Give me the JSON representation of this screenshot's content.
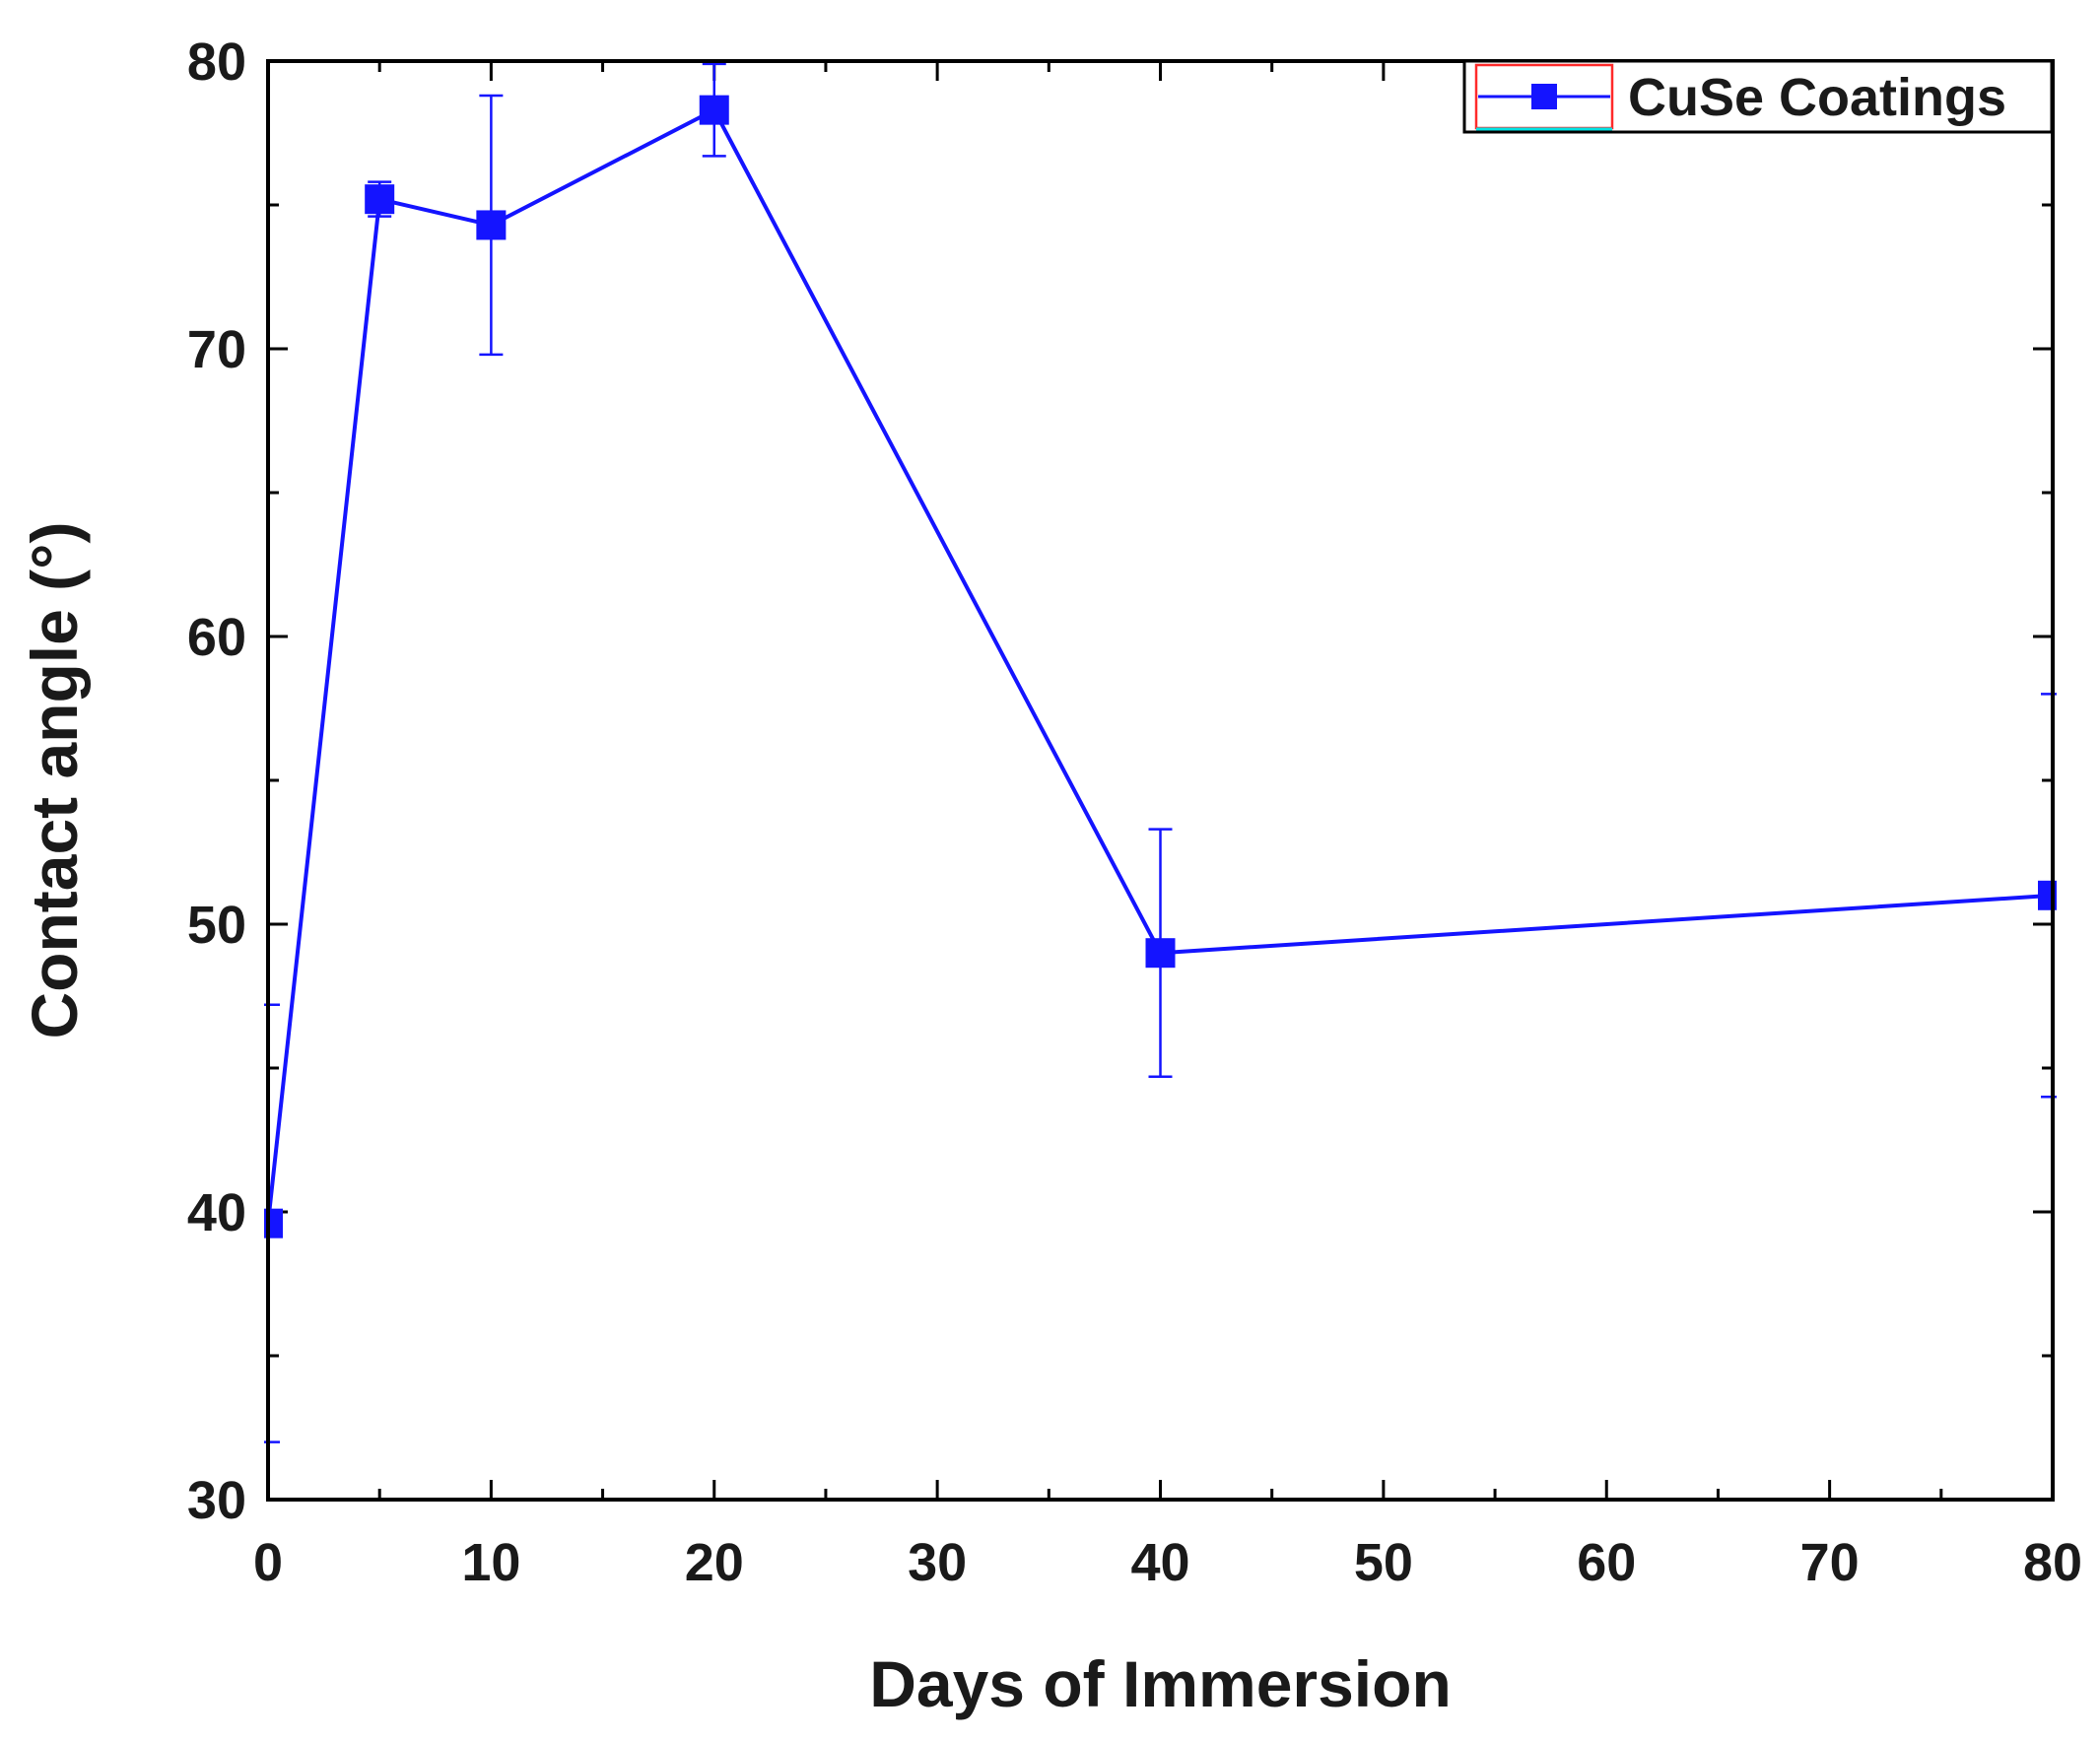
{
  "chart_data": {
    "type": "line",
    "title": "",
    "xlabel": "Days of Immersion",
    "ylabel": "Contact angle (°)",
    "xlim": [
      0,
      80
    ],
    "ylim": [
      30,
      80
    ],
    "x_ticks": [
      0,
      10,
      20,
      30,
      40,
      50,
      60,
      70,
      80
    ],
    "y_ticks": [
      30,
      40,
      50,
      60,
      70,
      80
    ],
    "x_minor_step": 5,
    "y_minor_step": 5,
    "grid": false,
    "legend_position": "top-right",
    "series": [
      {
        "name": "CuSe Coatings",
        "color": "#1414ff",
        "marker": "square",
        "x": [
          0,
          5,
          10,
          20,
          40,
          80
        ],
        "y": [
          39.6,
          75.2,
          74.3,
          78.3,
          49.0,
          51.0
        ],
        "error": [
          7.6,
          0.6,
          4.5,
          1.6,
          4.3,
          7.0
        ]
      }
    ]
  }
}
